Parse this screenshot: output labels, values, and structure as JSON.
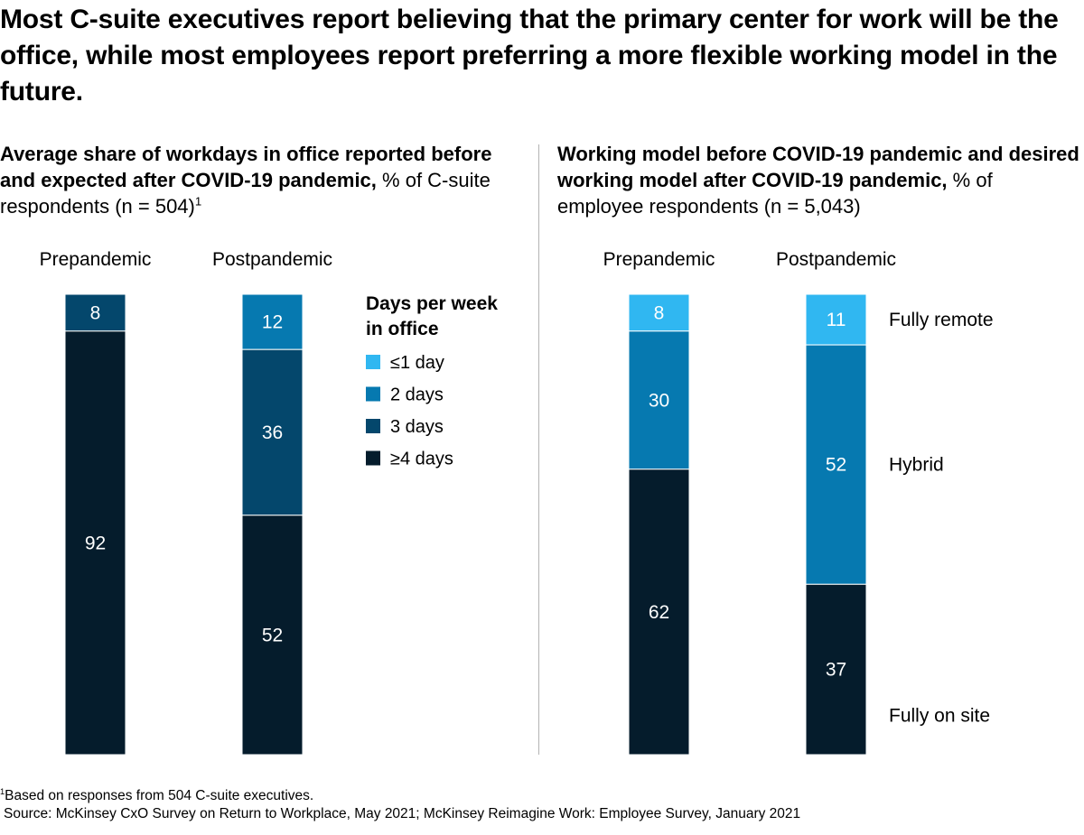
{
  "title": "Most C-suite executives report believing that the primary center for work will be the office, while most employees report preferring a more flexible working model in the future.",
  "left_panel": {
    "subtitle_bold": "Average share of workdays in office reported before and expected after COVID-19 pandemic,",
    "subtitle_normal": "% of C-suite respondents (n = 504)",
    "subtitle_sup": "1"
  },
  "right_panel": {
    "subtitle_bold": "Working model before COVID-19 pandemic and desired working model after COVID-19 pandemic,",
    "subtitle_normal": "% of employee respondents (n = 5,043)"
  },
  "footnotes": {
    "note1_sup": "1",
    "note1": "Based on responses from 504 C-suite executives.",
    "source": "Source: McKinsey CxO Survey on Return to Workplace, May 2021; McKinsey Reimagine Work: Employee Survey, January 2021"
  },
  "colors": {
    "lightest": "#30B7F1",
    "mid": "#0679B0",
    "dark": "#04476C",
    "darkest": "#051C2C"
  },
  "chart_data": [
    {
      "type": "bar",
      "stacked": true,
      "categories": [
        "Prepandemic",
        "Postpandemic"
      ],
      "legend_title": "Days per week in office",
      "legend_placement": "right",
      "series": [
        {
          "name": "≤1 day",
          "color": "#30B7F1",
          "values": [
            0,
            0
          ]
        },
        {
          "name": "2 days",
          "color": "#0679B0",
          "values": [
            0,
            12
          ]
        },
        {
          "name": "3 days",
          "color": "#04476C",
          "values": [
            8,
            36
          ]
        },
        {
          "name": "≥4 days",
          "color": "#051C2C",
          "values": [
            92,
            52
          ]
        }
      ],
      "ylim": [
        0,
        100
      ]
    },
    {
      "type": "bar",
      "stacked": true,
      "categories": [
        "Prepandemic",
        "Postpandemic"
      ],
      "legend_placement": "right",
      "series": [
        {
          "name": "Fully remote",
          "color": "#30B7F1",
          "values": [
            8,
            11
          ]
        },
        {
          "name": "Hybrid",
          "color": "#0679B0",
          "values": [
            30,
            52
          ]
        },
        {
          "name": "Fully on site",
          "color": "#051C2C",
          "values": [
            62,
            37
          ]
        }
      ],
      "ylim": [
        0,
        100
      ]
    }
  ]
}
